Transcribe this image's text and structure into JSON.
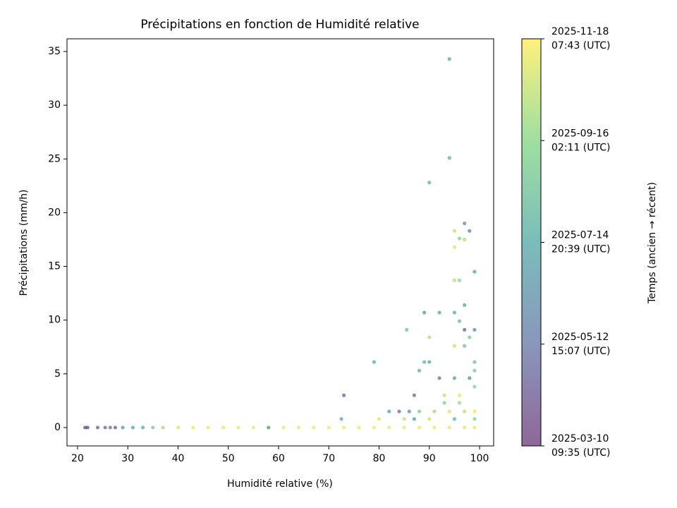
{
  "chart_data": {
    "type": "scatter",
    "title": "Précipitations en fonction de Humidité relative",
    "x_label": "Humidité relative (%)",
    "y_label": "Précipitations (mm/h)",
    "colorbar_label": "Temps (ancien → récent)",
    "colormap": "viridis",
    "opacity": 0.6,
    "xlim": [
      17.9,
      102.8
    ],
    "xticks": [
      20,
      30,
      40,
      50,
      60,
      70,
      80,
      90,
      100
    ],
    "ylim": [
      -1.71,
      36.18
    ],
    "yticks": [
      0,
      5,
      10,
      15,
      20,
      25,
      30,
      35
    ],
    "clim": [
      "2025-03-10T09:35Z",
      "2025-11-18T07:43Z"
    ],
    "cticks": [
      {
        "value": "2025-03-10T09:35Z",
        "label": "2025-03-10\n09:35 (UTC)"
      },
      {
        "value": "2025-05-12T15:07Z",
        "label": "2025-05-12\n15:07 (UTC)"
      },
      {
        "value": "2025-07-14T20:39Z",
        "label": "2025-07-14\n20:39 (UTC)"
      },
      {
        "value": "2025-09-16T02:11Z",
        "label": "2025-09-16\n02:11 (UTC)"
      },
      {
        "value": "2025-11-18T07:43Z",
        "label": "2025-11-18\n07:43 (UTC)"
      }
    ],
    "x": [
      21.5,
      22,
      24,
      25.5,
      26.5,
      27.5,
      29,
      31,
      33,
      35,
      37,
      40,
      43,
      46,
      49,
      52,
      55,
      58,
      61,
      64,
      67,
      70,
      73,
      76,
      79,
      82,
      85,
      88,
      91,
      94,
      97,
      99,
      94,
      94,
      90,
      97,
      98,
      95,
      96,
      97,
      95,
      99,
      95,
      96,
      97,
      89,
      92,
      95,
      96,
      85.5,
      97,
      99,
      90,
      98,
      79,
      89,
      90,
      99,
      88,
      99,
      92,
      95,
      73,
      87,
      93,
      96,
      72.5,
      82,
      84,
      86,
      88,
      91,
      94,
      97,
      99,
      80,
      87,
      95,
      99,
      85,
      90,
      93,
      96,
      99,
      97,
      95,
      98,
      58
    ],
    "y": [
      0,
      0,
      0,
      0,
      0,
      0,
      0,
      0,
      0,
      0,
      0,
      0,
      0,
      0,
      0,
      0,
      0,
      0,
      0,
      0,
      0,
      0,
      0,
      0,
      0,
      0,
      0,
      0,
      0,
      0,
      0,
      0,
      34.3,
      25.1,
      22.8,
      19,
      18.3,
      18.3,
      17.6,
      17.5,
      16.8,
      14.5,
      13.7,
      13.7,
      11.4,
      10.7,
      10.7,
      10.7,
      9.9,
      9.1,
      9.1,
      9.1,
      8.4,
      8.4,
      6.1,
      6.1,
      6.1,
      6.1,
      5.3,
      5.3,
      4.6,
      4.6,
      3,
      3,
      3,
      3,
      0.8,
      1.5,
      1.5,
      1.5,
      1.5,
      1.5,
      1.5,
      1.5,
      1.5,
      0.8,
      0.8,
      0.8,
      0.8,
      0.8,
      0.8,
      2.3,
      2.3,
      3.8,
      7.6,
      7.6,
      4.6,
      0
    ],
    "c": [
      "2025-04-01",
      "2025-04-01",
      "2025-04-20",
      "2025-05-01",
      "2025-05-10",
      "2025-04-15",
      "2025-06-20",
      "2025-07-10",
      "2025-07-20",
      "2025-08-30",
      "2025-10-01",
      "2025-11-01",
      "2025-11-10",
      "2025-11-10",
      "2025-11-10",
      "2025-11-10",
      "2025-11-10",
      "2025-11-10",
      "2025-11-10",
      "2025-11-10",
      "2025-11-10",
      "2025-11-10",
      "2025-11-10",
      "2025-11-10",
      "2025-11-10",
      "2025-11-10",
      "2025-11-10",
      "2025-11-10",
      "2025-11-10",
      "2025-11-10",
      "2025-11-10",
      "2025-11-10",
      "2025-07-20",
      "2025-07-25",
      "2025-07-30",
      "2025-06-20",
      "2025-05-20",
      "2025-10-20",
      "2025-09-10",
      "2025-10-10",
      "2025-11-01",
      "2025-07-01",
      "2025-10-15",
      "2025-09-20",
      "2025-07-10",
      "2025-06-15",
      "2025-07-15",
      "2025-07-25",
      "2025-08-10",
      "2025-08-20",
      "2025-04-20",
      "2025-06-10",
      "2025-10-10",
      "2025-09-01",
      "2025-07-15",
      "2025-08-01",
      "2025-07-10",
      "2025-08-15",
      "2025-07-25",
      "2025-09-01",
      "2025-05-10",
      "2025-07-01",
      "2025-04-20",
      "2025-05-01",
      "2025-10-20",
      "2025-11-05",
      "2025-07-20",
      "2025-07-01",
      "2025-05-01",
      "2025-06-01",
      "2025-09-01",
      "2025-10-01",
      "2025-11-01",
      "2025-10-15",
      "2025-11-10",
      "2025-11-01",
      "2025-07-01",
      "2025-08-01",
      "2025-09-10",
      "2025-10-20",
      "2025-10-25",
      "2025-09-15",
      "2025-10-01",
      "2025-09-15",
      "2025-08-20",
      "2025-10-25",
      "2025-06-01",
      "2025-07-15"
    ]
  }
}
